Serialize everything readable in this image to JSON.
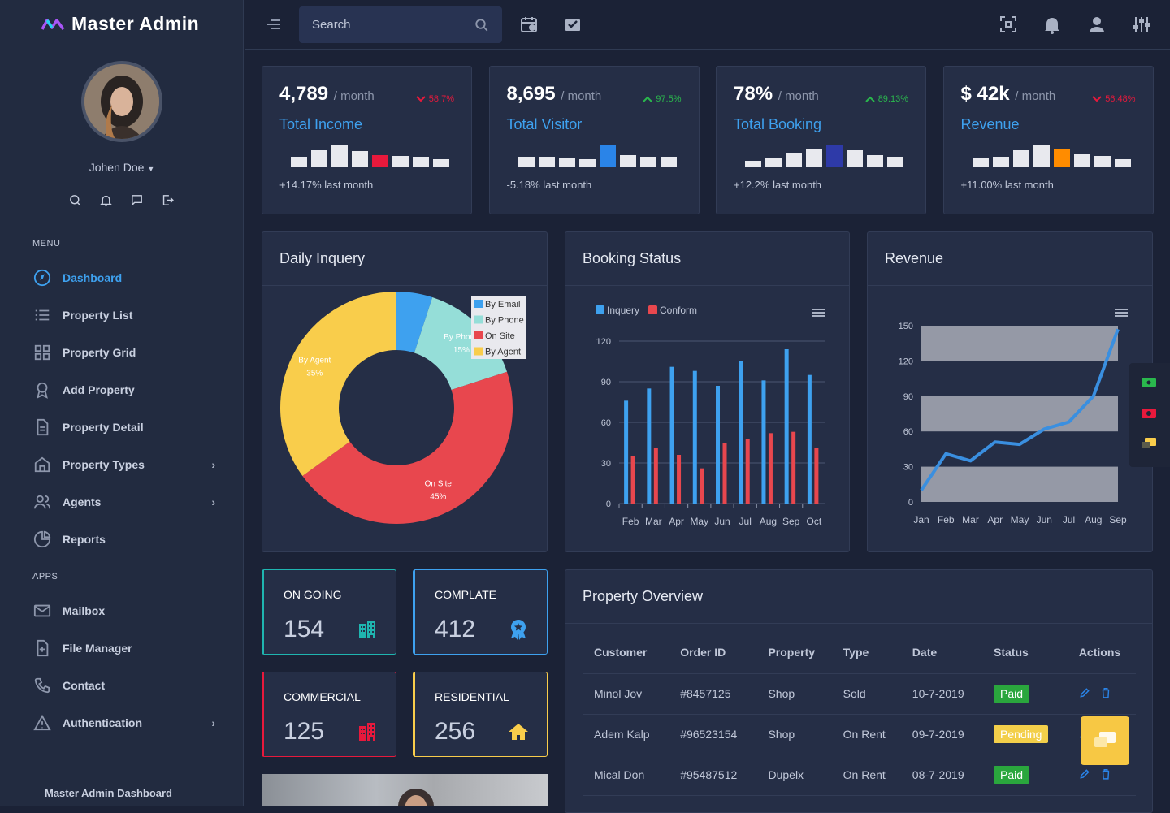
{
  "brand": {
    "name": "Master Admin"
  },
  "user": {
    "name": "Johen Doe"
  },
  "sidebar": {
    "menu_label": "MENU",
    "apps_label": "APPS",
    "items": [
      {
        "label": "Dashboard",
        "icon": "compass-icon",
        "active": true
      },
      {
        "label": "Property List",
        "icon": "list-icon"
      },
      {
        "label": "Property Grid",
        "icon": "grid-icon"
      },
      {
        "label": "Add Property",
        "icon": "award-icon"
      },
      {
        "label": "Property Detail",
        "icon": "file-icon"
      },
      {
        "label": "Property Types",
        "icon": "home-icon",
        "chevron": "›"
      },
      {
        "label": "Agents",
        "icon": "users-icon",
        "chevron": "›"
      },
      {
        "label": "Reports",
        "icon": "pie-chart-icon"
      }
    ],
    "apps": [
      {
        "label": "Mailbox",
        "icon": "mail-icon"
      },
      {
        "label": "File Manager",
        "icon": "file-plus-icon"
      },
      {
        "label": "Contact",
        "icon": "phone-icon"
      },
      {
        "label": "Authentication",
        "icon": "alert-triangle-icon",
        "chevron": "›"
      }
    ],
    "footer": "Master Admin Dashboard"
  },
  "search": {
    "placeholder": "Search"
  },
  "stats": [
    {
      "value": "4,789",
      "per": "/ month",
      "change": "58.7%",
      "dir": "down",
      "label": "Total Income",
      "sub": "+14.17% last month",
      "accent": "#e8193c",
      "bars": [
        0.45,
        0.75,
        1.0,
        0.7,
        0.55,
        0.5,
        0.45,
        0.35
      ],
      "hi": 4
    },
    {
      "value": "8,695",
      "per": "/ month",
      "change": "97.5%",
      "dir": "up",
      "label": "Total Visitor",
      "sub": "-5.18% last month",
      "accent": "#2a84e8",
      "bars": [
        0.45,
        0.45,
        0.4,
        0.35,
        1.0,
        0.55,
        0.45,
        0.45
      ],
      "hi": 4
    },
    {
      "value": "78%",
      "per": "/ month",
      "change": "89.13%",
      "dir": "up",
      "label": "Total Booking",
      "sub": "+12.2% last month",
      "accent": "#2e3aa8",
      "bars": [
        0.3,
        0.4,
        0.65,
        0.8,
        1.0,
        0.75,
        0.55,
        0.45
      ],
      "hi": 4
    },
    {
      "value": "$ 42k",
      "per": "/ month",
      "change": "56.48%",
      "dir": "down",
      "label": "Revenue",
      "sub": "+11.00% last month",
      "accent": "#ff8c00",
      "bars": [
        0.4,
        0.45,
        0.75,
        1.0,
        0.8,
        0.6,
        0.5,
        0.35
      ],
      "hi": 4
    }
  ],
  "panels": {
    "inquery": "Daily Inquery",
    "booking": "Booking Status",
    "revenue": "Revenue",
    "overview": "Property Overview"
  },
  "chart_data": [
    {
      "type": "pie",
      "title": "Daily Inquery",
      "labels": [
        "By Email",
        "By Phone",
        "On Site",
        "By Agent"
      ],
      "values": [
        5,
        15,
        45,
        35
      ],
      "colors": [
        "#3ea1ef",
        "#95ded8",
        "#e8474e",
        "#f9cd4b"
      ]
    },
    {
      "type": "bar",
      "title": "Booking Status",
      "categories": [
        "Feb",
        "Mar",
        "Apr",
        "May",
        "Jun",
        "Jul",
        "Aug",
        "Sep",
        "Oct"
      ],
      "series": [
        {
          "name": "Inquery",
          "color": "#3ea1ef",
          "values": [
            76,
            85,
            101,
            98,
            87,
            105,
            91,
            114,
            95
          ]
        },
        {
          "name": "Conform",
          "color": "#e8474e",
          "values": [
            35,
            41,
            36,
            26,
            45,
            48,
            52,
            53,
            41
          ]
        }
      ],
      "ylim": [
        0,
        120
      ],
      "yticks": [
        0,
        30,
        60,
        90,
        120
      ]
    },
    {
      "type": "line",
      "title": "Revenue",
      "categories": [
        "Jan",
        "Feb",
        "Mar",
        "Apr",
        "May",
        "Jun",
        "Jul",
        "Aug",
        "Sep"
      ],
      "series": [
        {
          "values": [
            10,
            41,
            35,
            51,
            49,
            62,
            68,
            90,
            147
          ]
        }
      ],
      "ylim": [
        0,
        150
      ],
      "yticks": [
        0,
        30,
        60,
        90,
        120,
        150
      ]
    }
  ],
  "minis": [
    {
      "title": "ON GOING",
      "value": "154",
      "color": "#1fb5b0",
      "icon": "building-icon"
    },
    {
      "title": "COMPLATE",
      "value": "412",
      "color": "#3ea1ef",
      "icon": "award-badge-icon"
    },
    {
      "title": "COMMERCIAL",
      "value": "125",
      "color": "#e8193c",
      "icon": "building-icon"
    },
    {
      "title": "RESIDENTIAL",
      "value": "256",
      "color": "#f9cd4b",
      "icon": "house-icon"
    }
  ],
  "table": {
    "headers": [
      "Customer",
      "Order ID",
      "Property",
      "Type",
      "Date",
      "Status",
      "Actions"
    ],
    "rows": [
      {
        "customer": "Minol Jov",
        "order": "#8457125",
        "property": "Shop",
        "type": "Sold",
        "date": "10-7-2019",
        "status": "Paid",
        "status_color": "#2aa63d"
      },
      {
        "customer": "Adem Kalp",
        "order": "#96523154",
        "property": "Shop",
        "type": "On Rent",
        "date": "09-7-2019",
        "status": "Pending",
        "status_color": "#f3cf4a"
      },
      {
        "customer": "Mical Don",
        "order": "#95487512",
        "property": "Dupelx",
        "type": "On Rent",
        "date": "08-7-2019",
        "status": "Paid",
        "status_color": "#2aa63d"
      }
    ]
  }
}
